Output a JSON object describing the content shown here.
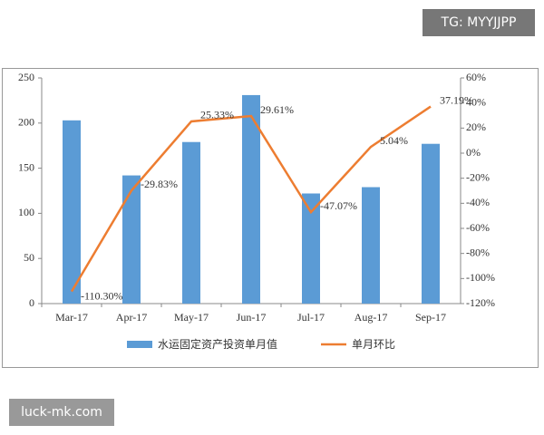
{
  "chart_data": {
    "type": "bar",
    "categories": [
      "Mar-17",
      "Apr-17",
      "May-17",
      "Jun-17",
      "Jul-17",
      "Aug-17",
      "Sep-17"
    ],
    "series": [
      {
        "name": "水运固定资产投资单月值",
        "type": "bar",
        "color": "#5b9bd5",
        "values": [
          203,
          142,
          179,
          231,
          122,
          129,
          177
        ]
      },
      {
        "name": "单月环比",
        "type": "line",
        "axis": "y2",
        "color": "#ed7d31",
        "values": [
          -110.3,
          -29.83,
          25.33,
          29.61,
          -47.07,
          5.04,
          37.19
        ],
        "value_labels": [
          "-110.30%",
          "-29.83%",
          "25.33%",
          "29.61%",
          "-47.07%",
          "5.04%",
          "37.19%"
        ]
      }
    ],
    "ylim": [
      0,
      250
    ],
    "yticks": [
      0,
      50,
      100,
      150,
      200,
      250
    ],
    "y2lim": [
      -120,
      60
    ],
    "y2ticks": [
      {
        "value": 60,
        "label": "60%"
      },
      {
        "value": 40,
        "label": "40%"
      },
      {
        "value": 20,
        "label": "20%"
      },
      {
        "value": 0,
        "label": "0%"
      },
      {
        "value": -20,
        "label": "-20%"
      },
      {
        "value": -40,
        "label": "-40%"
      },
      {
        "value": -60,
        "label": "-60%"
      },
      {
        "value": -80,
        "label": "-80%"
      },
      {
        "value": -100,
        "label": "-100%"
      },
      {
        "value": -120,
        "label": "-120%"
      }
    ],
    "grid": false
  },
  "watermarks": [
    "TG: MYYJJPP",
    "luck-mk.com"
  ]
}
